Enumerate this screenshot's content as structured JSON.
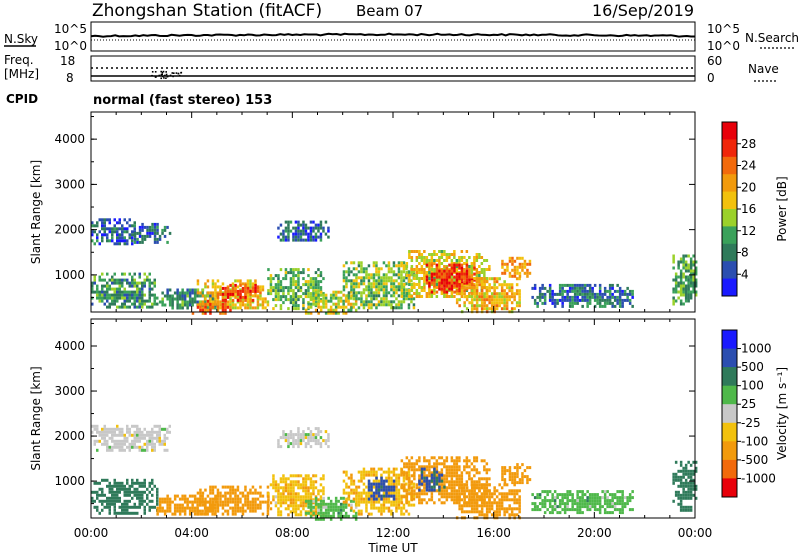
{
  "header": {
    "title": "Zhongshan Station (fitACF)",
    "beam": "Beam 07",
    "date": "16/Sep/2019"
  },
  "panels": {
    "nsky": {
      "label": "N.Sky",
      "ticks_left": [
        "10^5",
        "10^0"
      ],
      "ticks_right": [
        "10^5",
        "10^0"
      ],
      "right_label": "N.Search"
    },
    "freq": {
      "label": "Freq.",
      "unit": "[MHz]",
      "ticks_left": [
        "18",
        "8"
      ],
      "ticks_right": [
        "60",
        "0"
      ],
      "right_label": "Nave"
    },
    "cpid": {
      "label": "CPID",
      "text": "normal (fast stereo) 153"
    }
  },
  "chart_data": [
    {
      "type": "heatmap",
      "title": "",
      "ylabel": "Slant Range [km]",
      "xlabel": "",
      "ylim": [
        180,
        4600
      ],
      "yticks": [
        "1000",
        "2000",
        "3000",
        "4000"
      ],
      "xlim_hours": [
        0,
        24
      ],
      "colorbar": {
        "label": "Power [dB]",
        "ticks": [
          "28",
          "24",
          "20",
          "16",
          "12",
          "8",
          "4"
        ],
        "range": [
          0,
          32
        ]
      },
      "regions": [
        {
          "x0": 0.0,
          "x1": 1.7,
          "r0": 1700,
          "r1": 2250,
          "value": 6
        },
        {
          "x0": 1.7,
          "x1": 3.1,
          "r0": 1750,
          "r1": 2150,
          "value": 6
        },
        {
          "x0": 7.4,
          "x1": 9.4,
          "r0": 1750,
          "r1": 2200,
          "value": 6
        },
        {
          "x0": 0.0,
          "x1": 2.6,
          "r0": 300,
          "r1": 1050,
          "value": 10
        },
        {
          "x0": 2.6,
          "x1": 5.0,
          "r0": 250,
          "r1": 700,
          "value": 9
        },
        {
          "x0": 4.2,
          "x1": 7.0,
          "r0": 250,
          "r1": 900,
          "value": 18
        },
        {
          "x0": 5.0,
          "x1": 6.6,
          "r0": 450,
          "r1": 800,
          "value": 26
        },
        {
          "x0": 4.0,
          "x1": 5.5,
          "r0": 180,
          "r1": 450,
          "value": 24
        },
        {
          "x0": 7.0,
          "x1": 9.2,
          "r0": 250,
          "r1": 1150,
          "value": 12
        },
        {
          "x0": 8.5,
          "x1": 10.5,
          "r0": 180,
          "r1": 650,
          "value": 16
        },
        {
          "x0": 10.0,
          "x1": 12.8,
          "r0": 300,
          "r1": 1300,
          "value": 13
        },
        {
          "x0": 12.3,
          "x1": 15.8,
          "r0": 500,
          "r1": 1550,
          "value": 17
        },
        {
          "x0": 13.3,
          "x1": 15.2,
          "r0": 650,
          "r1": 1250,
          "value": 28
        },
        {
          "x0": 14.5,
          "x1": 17.0,
          "r0": 200,
          "r1": 950,
          "value": 19
        },
        {
          "x0": 16.3,
          "x1": 17.4,
          "r0": 950,
          "r1": 1400,
          "value": 20
        },
        {
          "x0": 17.5,
          "x1": 21.5,
          "r0": 300,
          "r1": 800,
          "value": 7
        },
        {
          "x0": 23.1,
          "x1": 24.0,
          "r0": 350,
          "r1": 1450,
          "value": 11
        }
      ]
    },
    {
      "type": "heatmap",
      "title": "",
      "ylabel": "Slant Range [km]",
      "xlabel": "Time UT",
      "ylim": [
        180,
        4600
      ],
      "yticks": [
        "1000",
        "2000",
        "3000",
        "4000"
      ],
      "xticks": [
        "00:00",
        "04:00",
        "08:00",
        "12:00",
        "16:00",
        "20:00",
        "00:00"
      ],
      "xlim_hours": [
        0,
        24
      ],
      "colorbar": {
        "label": "Velocity [m s⁻¹]",
        "ticks": [
          "1000",
          "500",
          "100",
          "25",
          "-25",
          "-100",
          "-500",
          "-1000"
        ],
        "levels": [
          1000,
          500,
          100,
          25,
          -25,
          -100,
          -500,
          -1000
        ]
      },
      "regions": [
        {
          "x0": 0.0,
          "x1": 3.1,
          "r0": 1700,
          "r1": 2250,
          "value": 0
        },
        {
          "x0": 7.4,
          "x1": 9.4,
          "r0": 1750,
          "r1": 2200,
          "value": 0
        },
        {
          "x0": 0.0,
          "x1": 2.6,
          "r0": 300,
          "r1": 1050,
          "value": 300
        },
        {
          "x0": 2.6,
          "x1": 5.0,
          "r0": 250,
          "r1": 700,
          "value": -300
        },
        {
          "x0": 4.2,
          "x1": 7.0,
          "r0": 250,
          "r1": 900,
          "value": -300
        },
        {
          "x0": 7.0,
          "x1": 9.2,
          "r0": 250,
          "r1": 1150,
          "value": -80
        },
        {
          "x0": 8.5,
          "x1": 10.5,
          "r0": 180,
          "r1": 650,
          "value": 60
        },
        {
          "x0": 10.0,
          "x1": 12.8,
          "r0": 300,
          "r1": 1300,
          "value": -80
        },
        {
          "x0": 11.0,
          "x1": 12.0,
          "r0": 600,
          "r1": 1100,
          "value": 700
        },
        {
          "x0": 12.3,
          "x1": 15.8,
          "r0": 500,
          "r1": 1550,
          "value": -300
        },
        {
          "x0": 13.0,
          "x1": 14.0,
          "r0": 800,
          "r1": 1300,
          "value": 600
        },
        {
          "x0": 14.5,
          "x1": 17.0,
          "r0": 200,
          "r1": 950,
          "value": -300
        },
        {
          "x0": 16.3,
          "x1": 17.4,
          "r0": 950,
          "r1": 1400,
          "value": -300
        },
        {
          "x0": 17.5,
          "x1": 21.5,
          "r0": 300,
          "r1": 800,
          "value": 60
        },
        {
          "x0": 23.1,
          "x1": 24.0,
          "r0": 350,
          "r1": 1450,
          "value": 300
        }
      ]
    }
  ],
  "colors": {
    "power": [
      "#1a1aff",
      "#2b4eb0",
      "#2f7a5a",
      "#3aa15a",
      "#9bd12a",
      "#f2c10d",
      "#f29a0c",
      "#f26a0c",
      "#f0260a",
      "#e8000a"
    ],
    "velocity": [
      "#1a1aff",
      "#2b4eb0",
      "#2f7a5a",
      "#4fb84a",
      "#c8c8c8",
      "#f2c10d",
      "#f29a0c",
      "#f26a0c",
      "#e8000a"
    ]
  }
}
